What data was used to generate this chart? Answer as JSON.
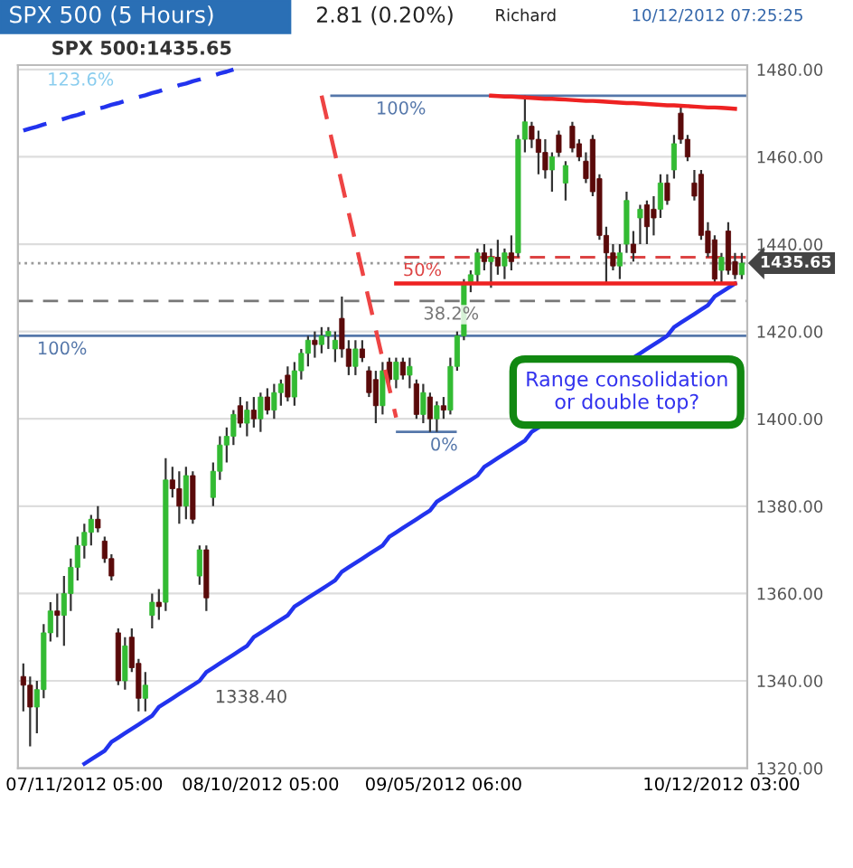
{
  "chart_data": {
    "type": "candlestick",
    "title": "SPX 500 (5 Hours)",
    "subtitle": "SPX 500:1435.65",
    "annotations": [
      "2.81 (0.20%)",
      "Richard",
      "10/12/2012 07:25:25",
      "Range consolidation\nor double top?",
      "1338.40",
      "123.6%",
      {
        "text": "100%",
        "y": 1474
      },
      {
        "text": "100%",
        "y": 1419
      },
      {
        "text": "50%",
        "y": 1437
      },
      {
        "text": "38.2%",
        "y": 1427
      },
      {
        "text": "0%",
        "y": 1397
      }
    ],
    "categories": [
      null,
      null,
      null,
      null,
      null,
      null,
      null,
      null,
      null,
      "07/11/2012 05:00",
      null,
      null,
      null,
      null,
      null,
      null,
      null,
      null,
      null,
      null,
      null,
      null,
      null,
      null,
      null,
      null,
      null,
      null,
      null,
      null,
      null,
      null,
      null,
      null,
      null,
      "08/10/2012 05:00",
      null,
      null,
      null,
      null,
      null,
      null,
      null,
      null,
      null,
      null,
      null,
      null,
      null,
      null,
      null,
      null,
      null,
      null,
      null,
      null,
      null,
      null,
      null,
      null,
      null,
      null,
      "09/05/2012 06:00",
      null,
      null,
      null,
      null,
      null,
      null,
      null,
      null,
      null,
      null,
      null,
      null,
      null,
      null,
      null,
      null,
      null,
      null,
      null,
      null,
      null,
      null,
      null,
      null,
      null,
      null,
      null,
      null,
      null,
      null,
      null,
      null,
      null,
      null,
      null,
      null,
      null,
      null,
      null,
      null,
      "10/12/2012 03:00",
      null,
      null,
      null
    ],
    "ohlc": [
      [
        1341,
        1344,
        1333,
        1339
      ],
      [
        1339,
        1341,
        1325,
        1334
      ],
      [
        1334,
        1340,
        1328,
        1338
      ],
      [
        1338,
        1353,
        1336,
        1351
      ],
      [
        1351,
        1358,
        1349,
        1356
      ],
      [
        1356,
        1360,
        1350,
        1355
      ],
      [
        1355,
        1364,
        1348,
        1360
      ],
      [
        1360,
        1368,
        1356,
        1366
      ],
      [
        1366,
        1373,
        1363,
        1371
      ],
      [
        1371,
        1376,
        1368,
        1374
      ],
      [
        1374,
        1378,
        1371,
        1377
      ],
      [
        1377,
        1380,
        1374,
        1375
      ],
      [
        1372,
        1373,
        1367,
        1368
      ],
      [
        1368,
        1369,
        1363,
        1364
      ],
      [
        1351,
        1352,
        1339,
        1340
      ],
      [
        1340,
        1350,
        1338,
        1348
      ],
      [
        1350,
        1352,
        1342,
        1343
      ],
      [
        1344,
        1345,
        1333,
        1336
      ],
      [
        1336,
        1342,
        1333,
        1339
      ],
      [
        1355,
        1360,
        1352,
        1358
      ],
      [
        1358,
        1361,
        1354,
        1357
      ],
      [
        1358,
        1391,
        1356,
        1386
      ],
      [
        1386,
        1389,
        1382,
        1384
      ],
      [
        1384,
        1388,
        1376,
        1380
      ],
      [
        1380,
        1389,
        1377,
        1387
      ],
      [
        1387,
        1388,
        1376,
        1377
      ],
      [
        1364,
        1371,
        1362,
        1370
      ],
      [
        1370,
        1371,
        1356,
        1359
      ],
      [
        1382,
        1390,
        1380,
        1388
      ],
      [
        1388,
        1396,
        1386,
        1394
      ],
      [
        1394,
        1398,
        1390,
        1396
      ],
      [
        1396,
        1402,
        1394,
        1401
      ],
      [
        1403,
        1405,
        1398,
        1399
      ],
      [
        1399,
        1404,
        1396,
        1402
      ],
      [
        1402,
        1405,
        1398,
        1400
      ],
      [
        1400,
        1406,
        1397,
        1405
      ],
      [
        1405,
        1407,
        1401,
        1402
      ],
      [
        1402,
        1408,
        1400,
        1406
      ],
      [
        1406,
        1409,
        1403,
        1408
      ],
      [
        1410,
        1412,
        1404,
        1405
      ],
      [
        1405,
        1413,
        1403,
        1411
      ],
      [
        1411,
        1416,
        1409,
        1415
      ],
      [
        1415,
        1419,
        1412,
        1418
      ],
      [
        1418,
        1420,
        1414,
        1417
      ],
      [
        1417,
        1421,
        1415,
        1419
      ],
      [
        1419,
        1421,
        1416,
        1420
      ],
      [
        1416,
        1420,
        1413,
        1418
      ],
      [
        1423,
        1428,
        1414,
        1416
      ],
      [
        1416,
        1418,
        1410,
        1412
      ],
      [
        1412,
        1418,
        1410,
        1416
      ],
      [
        1416,
        1418,
        1413,
        1414
      ],
      [
        1411,
        1412,
        1405,
        1406
      ],
      [
        1409,
        1411,
        1399,
        1403
      ],
      [
        1403,
        1413,
        1401,
        1411
      ],
      [
        1413,
        1414,
        1408,
        1409
      ],
      [
        1409,
        1414,
        1407,
        1413
      ],
      [
        1413,
        1414,
        1409,
        1410
      ],
      [
        1410,
        1414,
        1407,
        1412
      ],
      [
        1408,
        1409,
        1400,
        1401
      ],
      [
        1401,
        1408,
        1399,
        1406
      ],
      [
        1405,
        1406,
        1397,
        1400
      ],
      [
        1400,
        1404,
        1397,
        1403
      ],
      [
        1403,
        1405,
        1400,
        1402
      ],
      [
        1402,
        1414,
        1401,
        1412
      ],
      [
        1412,
        1420,
        1411,
        1419
      ],
      [
        1419,
        1432,
        1418,
        1431
      ],
      [
        1431,
        1434,
        1429,
        1433
      ],
      [
        1433,
        1439,
        1431,
        1438
      ],
      [
        1438,
        1440,
        1434,
        1436
      ],
      [
        1436,
        1439,
        1430,
        1437
      ],
      [
        1437,
        1441,
        1433,
        1435
      ],
      [
        1435,
        1439,
        1432,
        1438
      ],
      [
        1438,
        1442,
        1434,
        1436
      ],
      [
        1438,
        1465,
        1437,
        1464
      ],
      [
        1464,
        1474,
        1461,
        1468
      ],
      [
        1467,
        1468,
        1462,
        1464
      ],
      [
        1464,
        1466,
        1456,
        1461
      ],
      [
        1461,
        1464,
        1455,
        1457
      ],
      [
        1457,
        1461,
        1452,
        1460
      ],
      [
        1465,
        1466,
        1460,
        1461
      ],
      [
        1454,
        1459,
        1450,
        1458
      ],
      [
        1467,
        1468,
        1461,
        1462
      ],
      [
        1463,
        1464,
        1459,
        1460
      ],
      [
        1459,
        1461,
        1454,
        1455
      ],
      [
        1464,
        1465,
        1451,
        1452
      ],
      [
        1455,
        1456,
        1441,
        1442
      ],
      [
        1442,
        1444,
        1431,
        1438
      ],
      [
        1438,
        1440,
        1434,
        1435
      ],
      [
        1435,
        1440,
        1432,
        1438
      ],
      [
        1440,
        1452,
        1438,
        1450
      ],
      [
        1440,
        1443,
        1436,
        1438
      ],
      [
        1446,
        1449,
        1440,
        1448
      ],
      [
        1449,
        1450,
        1440,
        1444
      ],
      [
        1448,
        1451,
        1442,
        1446
      ],
      [
        1448,
        1456,
        1446,
        1454
      ],
      [
        1454,
        1456,
        1449,
        1450
      ],
      [
        1457,
        1465,
        1455,
        1463
      ],
      [
        1470,
        1472,
        1463,
        1464
      ],
      [
        1464,
        1465,
        1459,
        1460
      ],
      [
        1454,
        1457,
        1450,
        1451
      ],
      [
        1456,
        1457,
        1441,
        1442
      ],
      [
        1443,
        1445,
        1437,
        1438
      ],
      [
        1441,
        1442,
        1431,
        1432
      ],
      [
        1434,
        1438,
        1431,
        1437
      ],
      [
        1443,
        1445,
        1433,
        1434
      ],
      [
        1436,
        1438,
        1432,
        1433
      ],
      [
        1433,
        1438,
        1432,
        1435.65
      ]
    ],
    "series": [
      {
        "type": "line",
        "color": "#2233ee",
        "line_style": "solid",
        "values": [
          null,
          null,
          null,
          null,
          null,
          null,
          null,
          null,
          null,
          1321,
          1322,
          1323,
          1324,
          1326,
          1327,
          1328,
          1329,
          1330,
          1331,
          1332,
          1334,
          1335,
          1336,
          1337,
          1338,
          1339,
          1340,
          1342,
          1343,
          1344,
          1345,
          1346,
          1347,
          1348,
          1350,
          1351,
          1352,
          1353,
          1354,
          1355,
          1357,
          1358,
          1359,
          1360,
          1361,
          1362,
          1363,
          1365,
          1366,
          1367,
          1368,
          1369,
          1370,
          1371,
          1373,
          1374,
          1375,
          1376,
          1377,
          1378,
          1379,
          1381,
          1382,
          1383,
          1384,
          1385,
          1386,
          1387,
          1389,
          1390,
          1391,
          1392,
          1393,
          1394,
          1395,
          1397,
          1398,
          null,
          null,
          null,
          null,
          null,
          null,
          null,
          null,
          null,
          null,
          null,
          null,
          null,
          1414,
          1415,
          1416,
          1417,
          1418,
          1419,
          1421,
          1422,
          1423,
          1424,
          1425,
          1426,
          1428,
          1429,
          1430,
          1431,
          null
        ]
      },
      {
        "type": "line",
        "color": "#2233ee",
        "line_style": "dashed",
        "values": [
          1466.0,
          1466.5,
          1466.9,
          1467.4,
          1467.8,
          1468.3,
          1468.7,
          1469.2,
          1469.6,
          1470.1,
          1470.5,
          1471.0,
          1471.4,
          1471.9,
          1472.3,
          1472.8,
          1473.2,
          1473.7,
          1474.1,
          1474.6,
          1475.0,
          1475.5,
          1475.9,
          1476.4,
          1476.8,
          1477.3,
          1477.7,
          1478.2,
          1478.6,
          1479.1,
          1479.5,
          1480.0,
          null,
          null,
          null,
          null,
          null,
          null,
          null,
          null,
          null,
          null,
          null,
          null,
          null,
          null,
          null,
          null,
          null,
          null,
          null,
          null,
          null,
          null,
          null,
          null,
          null,
          null,
          null,
          null,
          null,
          null,
          null,
          null,
          null,
          null,
          null,
          null,
          null,
          null,
          null,
          null,
          null,
          null,
          null,
          null,
          null,
          null,
          null,
          null,
          null,
          null,
          null,
          null,
          null,
          null,
          null,
          null,
          null,
          null,
          null,
          null,
          null,
          null,
          null,
          null,
          null,
          null,
          null,
          null,
          null,
          null,
          null,
          null,
          null,
          null,
          null
        ]
      },
      {
        "type": "line",
        "color": "#ee2222",
        "line_style": "solid",
        "values": [
          null,
          null,
          null,
          null,
          null,
          null,
          null,
          null,
          null,
          null,
          null,
          null,
          null,
          null,
          null,
          null,
          null,
          null,
          null,
          null,
          null,
          null,
          null,
          null,
          null,
          null,
          null,
          null,
          null,
          null,
          null,
          null,
          null,
          null,
          null,
          null,
          null,
          null,
          null,
          null,
          null,
          null,
          null,
          null,
          null,
          null,
          null,
          null,
          null,
          null,
          null,
          null,
          null,
          null,
          null,
          null,
          null,
          null,
          null,
          null,
          null,
          null,
          null,
          null,
          null,
          null,
          null,
          null,
          null,
          1474.0,
          1473.9,
          1473.8,
          1473.8,
          1473.7,
          1473.6,
          1473.5,
          1473.4,
          1473.3,
          1473.3,
          1473.2,
          1473.1,
          1473.0,
          1472.9,
          1472.8,
          1472.8,
          1472.7,
          1472.6,
          1472.5,
          1472.4,
          1472.3,
          1472.3,
          1472.2,
          1472.1,
          1472.0,
          1471.9,
          1471.8,
          1471.8,
          1471.7,
          1471.6,
          1471.5,
          1471.4,
          1471.3,
          1471.3,
          1471.2,
          1471.1,
          1471.0,
          null
        ]
      },
      {
        "type": "line",
        "color": "#ee2222",
        "line_style": "solid",
        "values": [
          null,
          null,
          null,
          null,
          null,
          null,
          null,
          null,
          null,
          null,
          null,
          null,
          null,
          null,
          null,
          null,
          null,
          null,
          null,
          null,
          null,
          null,
          null,
          null,
          null,
          null,
          null,
          null,
          null,
          null,
          null,
          null,
          null,
          null,
          null,
          null,
          null,
          null,
          null,
          null,
          null,
          null,
          null,
          null,
          null,
          null,
          null,
          null,
          null,
          null,
          null,
          null,
          null,
          null,
          null,
          1431,
          1431,
          1431,
          1431,
          1431,
          1431,
          1431,
          1431,
          1431,
          1431,
          1431,
          1431,
          1431,
          1431,
          1431,
          1431,
          1431,
          1431,
          1431,
          1431,
          1431,
          1431,
          1431,
          1431,
          1431,
          1431,
          1431,
          1431,
          1431,
          1431,
          1431,
          1431,
          1431,
          1431,
          1431,
          1431,
          1431,
          1431,
          1431,
          1431,
          1431,
          1431,
          1431,
          1431,
          1431,
          1431,
          1431,
          1431,
          1431,
          1431,
          1431,
          null
        ]
      },
      {
        "type": "line",
        "color": "#ee4444",
        "line_style": "dashed",
        "values": [
          null,
          null,
          null,
          null,
          null,
          null,
          null,
          null,
          null,
          null,
          null,
          null,
          null,
          null,
          null,
          null,
          null,
          null,
          null,
          null,
          null,
          null,
          null,
          null,
          null,
          null,
          null,
          null,
          null,
          null,
          null,
          null,
          null,
          null,
          null,
          null,
          null,
          null,
          null,
          null,
          null,
          null,
          null,
          null,
          1474,
          1467.3,
          1460.6,
          1453.9,
          1447.2,
          1440.5,
          1433.8,
          1427.1,
          1420.4,
          1413.7,
          1407,
          1400.3,
          null,
          null,
          null,
          null,
          null,
          null,
          null,
          null,
          null,
          null,
          null,
          null,
          null,
          null,
          null,
          null,
          null,
          null,
          null,
          null,
          null,
          null,
          null,
          null,
          null,
          null,
          null,
          null,
          null,
          null,
          null,
          null,
          null,
          null,
          null,
          null,
          null,
          null,
          null,
          null,
          null,
          null,
          null,
          null,
          null,
          null,
          null,
          null,
          null,
          null,
          null
        ]
      }
    ],
    "ref_lines": [
      {
        "axis": "y",
        "value": 1474,
        "color": "#5577aa",
        "line_style": "solid"
      },
      {
        "axis": "y",
        "value": 1419,
        "color": "#5577aa",
        "line_style": "solid"
      },
      {
        "axis": "y",
        "value": 1437,
        "color": "#dd4444",
        "line_style": "dashed"
      },
      {
        "axis": "y",
        "value": 1427,
        "color": "#777777",
        "line_style": "dashed"
      },
      {
        "axis": "y",
        "value": 1397,
        "color": "#5577aa",
        "line_style": "solid"
      },
      {
        "axis": "y",
        "value": 1435.65,
        "label": "1435.65",
        "color": "#999999",
        "line_style": "dotted"
      }
    ],
    "ylim": [
      1320,
      1481
    ],
    "yticks": [
      {
        "value": 1320,
        "label": "1320.00"
      },
      {
        "value": 1340,
        "label": "1340.00"
      },
      {
        "value": 1360,
        "label": "1360.00"
      },
      {
        "value": 1380,
        "label": "1380.00"
      },
      {
        "value": 1400,
        "label": "1400.00"
      },
      {
        "value": 1420,
        "label": "1420.00"
      },
      {
        "value": 1440,
        "label": "1440.00"
      },
      {
        "value": 1460,
        "label": "1460.00"
      },
      {
        "value": 1480,
        "label": "1480.00"
      }
    ],
    "grid": "y"
  }
}
